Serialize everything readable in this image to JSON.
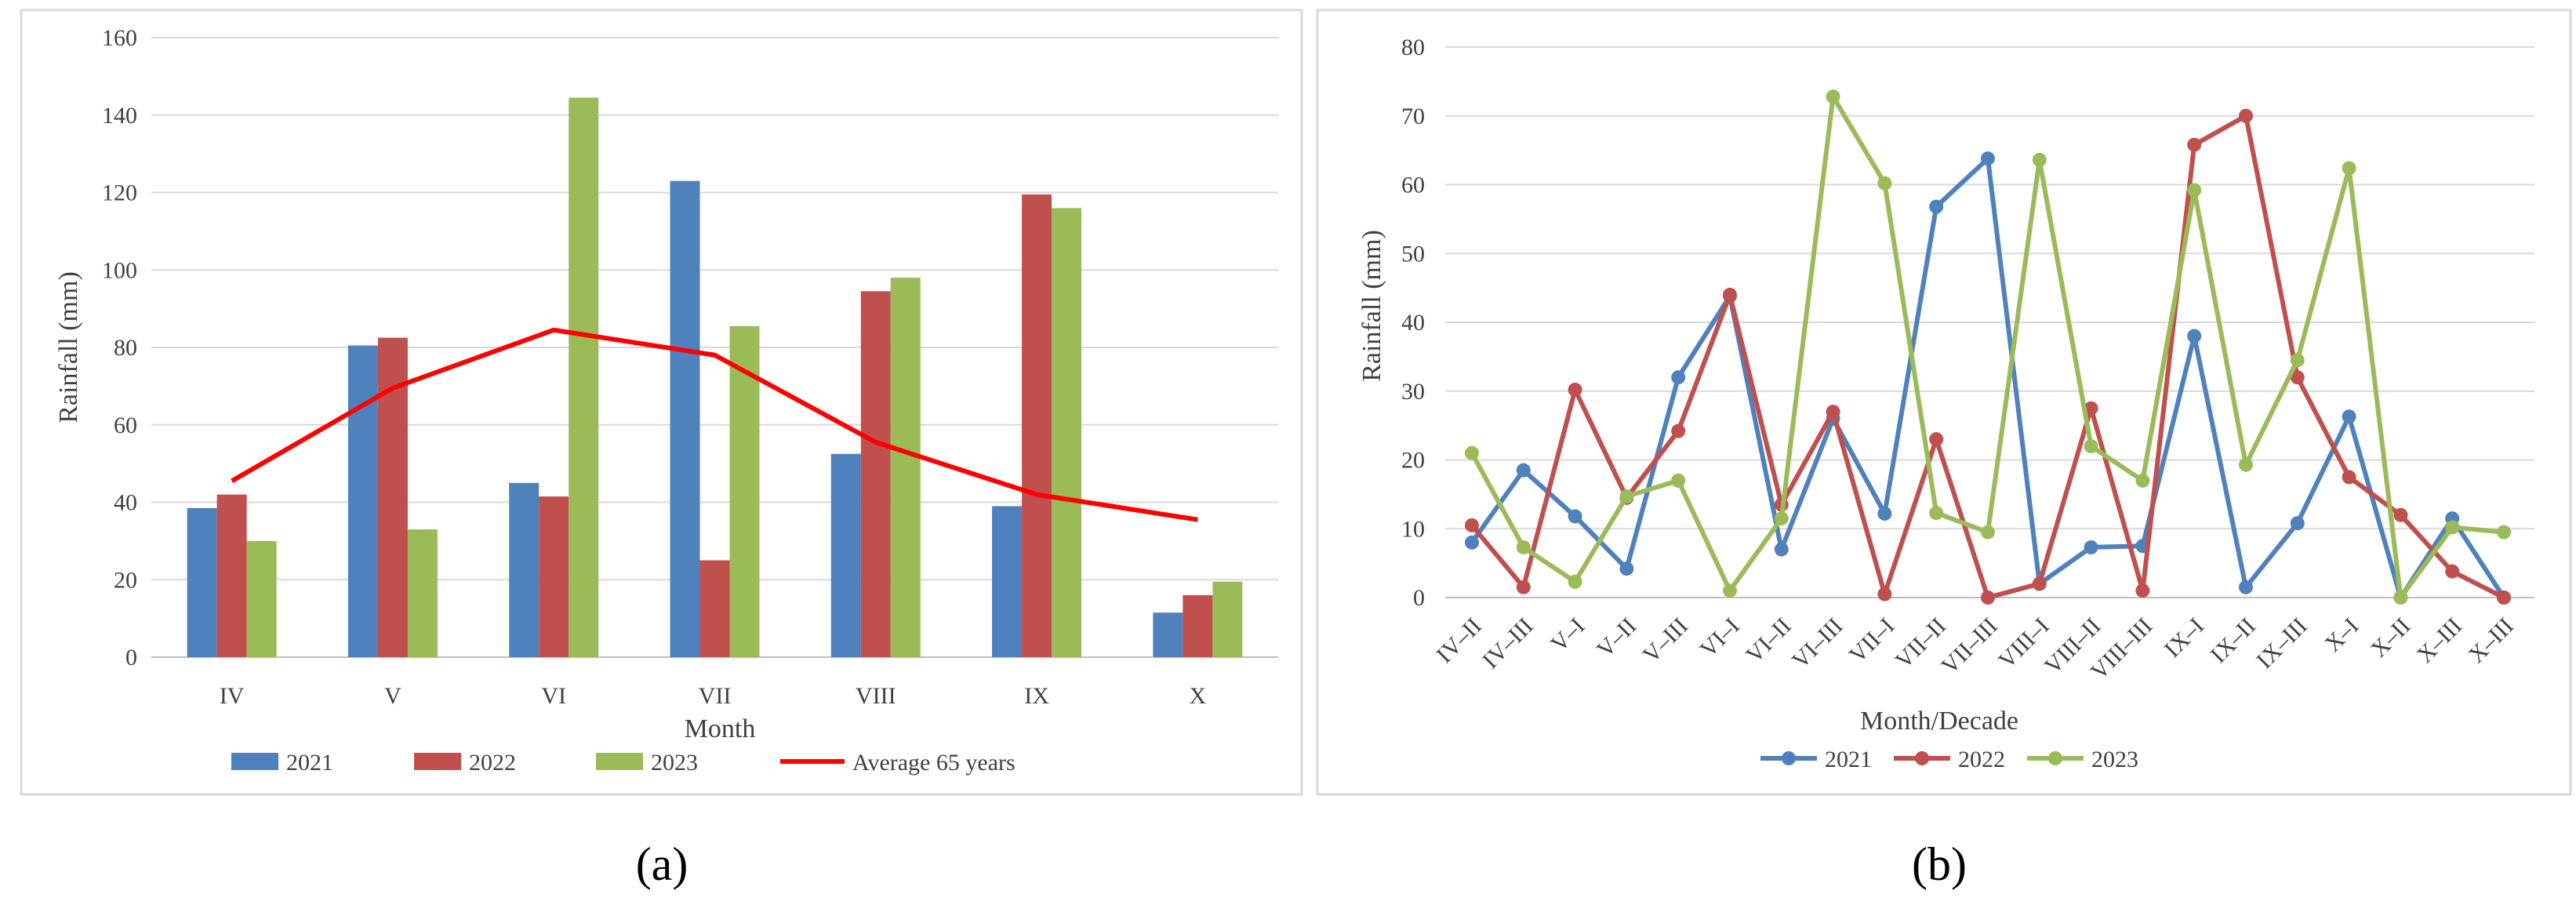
{
  "captions": {
    "a": "(a)",
    "b": "(b)"
  },
  "chart_data": [
    {
      "type": "bar",
      "panel": "a",
      "title": "",
      "xlabel": "Month",
      "ylabel": "Rainfall (mm)",
      "ylim": [
        0,
        160
      ],
      "yticks": [
        0,
        20,
        40,
        60,
        80,
        100,
        120,
        140,
        160
      ],
      "categories": [
        "IV",
        "V",
        "VI",
        "VII",
        "VIII",
        "IX",
        "X"
      ],
      "series": [
        {
          "name": "2021",
          "kind": "bar",
          "color": "#4f81bd",
          "values": [
            38.5,
            80.5,
            45,
            123,
            52.5,
            39,
            11.5
          ]
        },
        {
          "name": "2022",
          "kind": "bar",
          "color": "#c0504d",
          "values": [
            42,
            82.5,
            41.5,
            25,
            94.5,
            119.5,
            16
          ]
        },
        {
          "name": "2023",
          "kind": "bar",
          "color": "#9bbb59",
          "values": [
            30,
            33,
            144.5,
            85.5,
            98,
            116,
            19.5
          ]
        },
        {
          "name": "Average 65 years",
          "kind": "line",
          "color": "#ff0000",
          "values": [
            45.5,
            69.5,
            84.5,
            78,
            55.5,
            42,
            35.5
          ]
        }
      ],
      "legend": "bottom",
      "grid": true
    },
    {
      "type": "line",
      "panel": "b",
      "title": "",
      "xlabel": "Month/Decade",
      "ylabel": "Rainfall (mm)",
      "ylim": [
        0,
        80
      ],
      "yticks": [
        0,
        10,
        20,
        30,
        40,
        50,
        60,
        70,
        80
      ],
      "categories": [
        "IV–II",
        "IV–III",
        "V–I",
        "V–II",
        "V–III",
        "VI–I",
        "VI–II",
        "VI–III",
        "VII–I",
        "VII–II",
        "VII–III",
        "VIII–I",
        "VIII–II",
        "VIII–III",
        "IX–I",
        "IX–II",
        "IX–III",
        "X–I",
        "X–II",
        "X–III",
        "X–III"
      ],
      "series": [
        {
          "name": "2021",
          "color": "#4f81bd",
          "values": [
            8,
            18.5,
            11.8,
            4.2,
            32,
            43.8,
            7,
            26,
            12.2,
            56.8,
            63.8,
            2,
            7.3,
            7.5,
            38,
            1.5,
            10.8,
            26.3,
            0,
            11.5,
            0
          ]
        },
        {
          "name": "2022",
          "color": "#c0504d",
          "values": [
            10.5,
            1.5,
            30.2,
            14.5,
            24.2,
            44,
            13.5,
            27,
            0.5,
            23,
            0,
            2,
            27.5,
            1,
            65.8,
            70,
            32,
            17.5,
            12,
            3.8,
            0
          ]
        },
        {
          "name": "2023",
          "color": "#9bbb59",
          "values": [
            21,
            7.3,
            2.3,
            14.7,
            17,
            1,
            11.5,
            72.8,
            60.2,
            12.3,
            9.5,
            63.6,
            22,
            17,
            59.2,
            19.3,
            34.5,
            62.4,
            0,
            10.2,
            9.5
          ]
        }
      ],
      "legend": "bottom",
      "grid": true
    }
  ]
}
